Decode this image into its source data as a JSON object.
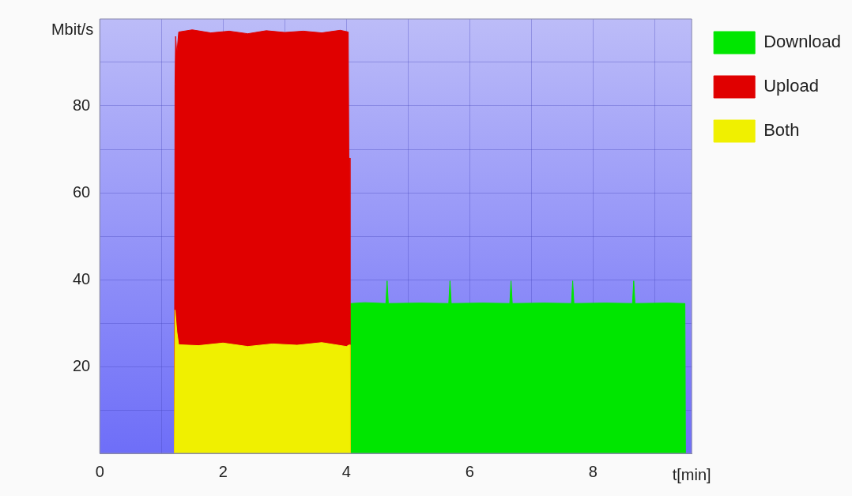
{
  "chart_data": {
    "type": "area",
    "xlabel": "t[min]",
    "ylabel": "Mbit/s",
    "legend": "right",
    "grid": true,
    "xlim": [
      0,
      9.6
    ],
    "xticks": [
      0,
      {
        "value": 1,
        "label": null
      },
      2,
      {
        "value": 3,
        "label": null
      },
      4,
      {
        "value": 5,
        "label": null
      },
      6,
      {
        "value": 7,
        "label": null
      },
      8,
      {
        "value": 9,
        "label": null
      }
    ],
    "ylim": [
      0,
      100
    ],
    "yticks": [
      {
        "value": 10,
        "label": null
      },
      20,
      {
        "value": 30,
        "label": null
      },
      40,
      {
        "value": 50,
        "label": null
      },
      60,
      {
        "value": 70,
        "label": null
      },
      80,
      {
        "value": 90,
        "label": null
      }
    ],
    "series": [
      {
        "name": "Download",
        "color": "#00e600",
        "x": [
          4.06,
          4.07,
          4.3,
          4.64,
          4.66,
          4.68,
          5.2,
          5.66,
          5.68,
          5.7,
          6.2,
          6.65,
          6.67,
          6.69,
          7.2,
          7.65,
          7.67,
          7.69,
          8.2,
          8.64,
          8.66,
          8.68,
          9.2,
          9.49,
          9.5
        ],
        "values": [
          0,
          34.5,
          34.7,
          34.5,
          39.7,
          34.5,
          34.6,
          34.5,
          39.7,
          34.5,
          34.6,
          34.5,
          39.7,
          34.5,
          34.6,
          34.5,
          39.7,
          34.5,
          34.6,
          34.5,
          39.7,
          34.5,
          34.6,
          34.5,
          0
        ]
      },
      {
        "name": "Upload",
        "color": "#e00000",
        "x": [
          1.21,
          1.22,
          1.23,
          1.25,
          1.28,
          1.5,
          1.8,
          2.1,
          2.4,
          2.7,
          3.0,
          3.3,
          3.6,
          3.9,
          4.03,
          4.04,
          4.05,
          4.06
        ],
        "values": [
          0,
          85,
          96,
          92,
          97,
          97.5,
          96.8,
          97.2,
          96.6,
          97.3,
          96.9,
          97.2,
          96.8,
          97.4,
          97,
          68,
          68,
          0
        ]
      },
      {
        "name": "Both",
        "color": "#f0f000",
        "x": [
          1.21,
          1.22,
          1.25,
          1.28,
          1.6,
          2.0,
          2.4,
          2.8,
          3.2,
          3.6,
          4.0,
          4.05,
          4.06
        ],
        "values": [
          0,
          33,
          28,
          25,
          24.8,
          25.4,
          24.6,
          25.2,
          24.9,
          25.5,
          24.6,
          25,
          0
        ]
      }
    ]
  }
}
